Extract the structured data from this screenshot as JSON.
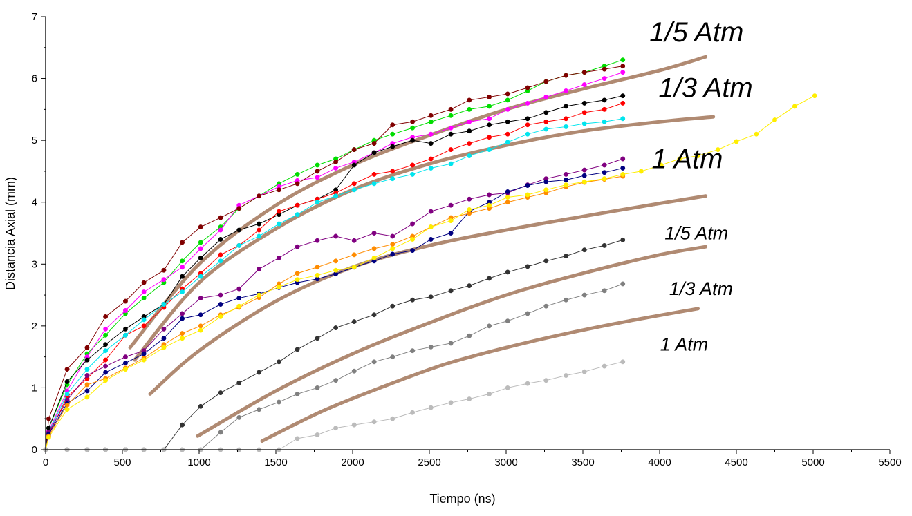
{
  "chart_data": {
    "type": "line",
    "title": "",
    "xlabel": "Tiempo (ns)",
    "ylabel": "Distancia Axial (mm)",
    "xlim": [
      0,
      5500
    ],
    "ylim": [
      0,
      7
    ],
    "x_ticks": [
      "0",
      "500",
      "1000",
      "1500",
      "2000",
      "2500",
      "3000",
      "3500",
      "4000",
      "4500",
      "5000",
      "5500"
    ],
    "y_ticks": [
      "0",
      "1",
      "2",
      "3",
      "4",
      "5",
      "6",
      "7"
    ],
    "grid": false,
    "legend": "none",
    "annotations": [
      {
        "text": "1/5 Atm",
        "x": 4240,
        "y": 6.6,
        "size": "large"
      },
      {
        "text": "1/3 Atm",
        "x": 4300,
        "y": 5.7,
        "size": "large"
      },
      {
        "text": "1 Atm",
        "x": 4180,
        "y": 4.55,
        "size": "large"
      },
      {
        "text": "1/5 Atm",
        "x": 4240,
        "y": 3.4,
        "size": "small"
      },
      {
        "text": "1/3 Atm",
        "x": 4270,
        "y": 2.5,
        "size": "small"
      },
      {
        "text": "1 Atm",
        "x": 4160,
        "y": 1.6,
        "size": "small"
      }
    ],
    "series": [
      {
        "color": "#00dd00",
        "x": [
          0,
          20,
          140,
          270,
          390,
          520,
          640,
          770,
          890,
          1010,
          1140,
          1260,
          1390,
          1520,
          1640,
          1770,
          1890,
          2010,
          2140,
          2260,
          2390,
          2510,
          2640,
          2760,
          2890,
          3010,
          3140,
          3260,
          3390,
          3510,
          3640,
          3760
        ],
        "y": [
          0,
          0.35,
          1.05,
          1.55,
          1.85,
          2.2,
          2.45,
          2.7,
          3.05,
          3.35,
          3.6,
          3.9,
          4.1,
          4.3,
          4.45,
          4.6,
          4.7,
          4.85,
          5.0,
          5.1,
          5.2,
          5.3,
          5.4,
          5.5,
          5.55,
          5.65,
          5.8,
          5.95,
          6.05,
          6.1,
          6.2,
          6.3
        ]
      },
      {
        "color": "#ff00ff",
        "x": [
          0,
          20,
          140,
          270,
          390,
          520,
          640,
          770,
          890,
          1010,
          1140,
          1260,
          1390,
          1520,
          1640,
          1770,
          1890,
          2010,
          2140,
          2260,
          2390,
          2510,
          2640,
          2760,
          2890,
          3010,
          3140,
          3260,
          3390,
          3510,
          3640,
          3760
        ],
        "y": [
          0,
          0.3,
          0.95,
          1.5,
          1.95,
          2.25,
          2.55,
          2.75,
          2.95,
          3.25,
          3.55,
          3.95,
          4.1,
          4.25,
          4.35,
          4.4,
          4.55,
          4.65,
          4.8,
          4.95,
          5.05,
          5.1,
          5.2,
          5.3,
          5.35,
          5.5,
          5.6,
          5.7,
          5.8,
          5.9,
          6.0,
          6.1
        ]
      },
      {
        "color": "#800000",
        "x": [
          0,
          20,
          140,
          270,
          390,
          520,
          640,
          770,
          890,
          1010,
          1140,
          1260,
          1390,
          1520,
          1640,
          1770,
          1890,
          2010,
          2140,
          2260,
          2390,
          2510,
          2640,
          2760,
          2890,
          3010,
          3140,
          3260,
          3390,
          3510,
          3640,
          3760
        ],
        "y": [
          0,
          0.5,
          1.3,
          1.65,
          2.15,
          2.4,
          2.7,
          2.9,
          3.35,
          3.6,
          3.75,
          3.9,
          4.1,
          4.2,
          4.3,
          4.5,
          4.65,
          4.85,
          4.95,
          5.25,
          5.3,
          5.4,
          5.5,
          5.65,
          5.7,
          5.75,
          5.85,
          5.95,
          6.05,
          6.1,
          6.15,
          6.2
        ]
      },
      {
        "color": "#000000",
        "x": [
          0,
          20,
          140,
          270,
          390,
          520,
          640,
          770,
          890,
          1010,
          1140,
          1260,
          1390,
          1520,
          1640,
          1770,
          1890,
          2010,
          2140,
          2260,
          2390,
          2510,
          2640,
          2760,
          2890,
          3010,
          3140,
          3260,
          3390,
          3510,
          3640,
          3760
        ],
        "y": [
          0,
          0.35,
          1.1,
          1.45,
          1.7,
          1.95,
          2.15,
          2.35,
          2.8,
          3.1,
          3.4,
          3.55,
          3.65,
          3.8,
          3.95,
          4.05,
          4.2,
          4.6,
          4.8,
          4.9,
          5.0,
          4.95,
          5.1,
          5.15,
          5.25,
          5.3,
          5.35,
          5.45,
          5.55,
          5.6,
          5.65,
          5.72
        ]
      },
      {
        "color": "#ff0000",
        "x": [
          0,
          20,
          140,
          270,
          390,
          520,
          640,
          770,
          890,
          1010,
          1140,
          1260,
          1390,
          1520,
          1640,
          1770,
          1890,
          2010,
          2140,
          2260,
          2390,
          2510,
          2640,
          2760,
          2890,
          3010,
          3140,
          3260,
          3390,
          3510,
          3640,
          3760
        ],
        "y": [
          0,
          0.25,
          0.85,
          1.15,
          1.45,
          1.85,
          2.0,
          2.3,
          2.6,
          2.85,
          3.15,
          3.3,
          3.55,
          3.85,
          3.95,
          4.05,
          4.15,
          4.3,
          4.45,
          4.5,
          4.6,
          4.7,
          4.85,
          4.95,
          5.05,
          5.1,
          5.25,
          5.3,
          5.35,
          5.45,
          5.5,
          5.6
        ]
      },
      {
        "color": "#00e5ee",
        "x": [
          0,
          20,
          140,
          270,
          390,
          520,
          640,
          770,
          890,
          1010,
          1140,
          1260,
          1390,
          1520,
          1640,
          1770,
          1890,
          2010,
          2140,
          2260,
          2390,
          2510,
          2640,
          2760,
          2890,
          3010,
          3140,
          3260,
          3390,
          3510,
          3640,
          3760
        ],
        "y": [
          0,
          0.28,
          0.9,
          1.3,
          1.6,
          1.85,
          2.1,
          2.35,
          2.55,
          2.8,
          3.05,
          3.3,
          3.45,
          3.65,
          3.8,
          4.0,
          4.1,
          4.2,
          4.3,
          4.38,
          4.45,
          4.55,
          4.62,
          4.75,
          4.85,
          4.97,
          5.1,
          5.18,
          5.22,
          5.27,
          5.3,
          5.35
        ]
      },
      {
        "color": "#800080",
        "x": [
          0,
          20,
          140,
          270,
          390,
          520,
          640,
          770,
          890,
          1010,
          1140,
          1260,
          1390,
          1520,
          1640,
          1770,
          1890,
          2010,
          2140,
          2260,
          2390,
          2510,
          2640,
          2760,
          2890,
          3010,
          3140,
          3260,
          3390,
          3510,
          3640,
          3760
        ],
        "y": [
          0,
          0.28,
          0.8,
          1.2,
          1.35,
          1.5,
          1.6,
          1.95,
          2.2,
          2.45,
          2.5,
          2.6,
          2.92,
          3.1,
          3.28,
          3.38,
          3.45,
          3.38,
          3.5,
          3.45,
          3.65,
          3.85,
          3.95,
          4.05,
          4.12,
          4.15,
          4.28,
          4.38,
          4.45,
          4.52,
          4.6,
          4.7
        ]
      },
      {
        "color": "#000080",
        "x": [
          0,
          20,
          140,
          270,
          390,
          520,
          640,
          770,
          890,
          1010,
          1140,
          1260,
          1390,
          1520,
          1640,
          1770,
          1890,
          2010,
          2140,
          2260,
          2390,
          2510,
          2640,
          2760,
          2890,
          3010,
          3140,
          3260,
          3390,
          3510,
          3640,
          3760
        ],
        "y": [
          0,
          0.25,
          0.75,
          0.95,
          1.25,
          1.4,
          1.55,
          1.8,
          2.12,
          2.18,
          2.35,
          2.45,
          2.52,
          2.62,
          2.7,
          2.76,
          2.84,
          2.95,
          3.05,
          3.16,
          3.22,
          3.4,
          3.5,
          3.85,
          4.0,
          4.17,
          4.27,
          4.33,
          4.36,
          4.43,
          4.48,
          4.55
        ]
      },
      {
        "color": "#ff8c00",
        "x": [
          0,
          20,
          140,
          270,
          390,
          520,
          640,
          770,
          890,
          1010,
          1140,
          1260,
          1390,
          1520,
          1640,
          1770,
          1890,
          2010,
          2140,
          2260,
          2390,
          2510,
          2640,
          2760,
          2890,
          3010,
          3140,
          3260,
          3390,
          3510,
          3640,
          3760
        ],
        "y": [
          0,
          0.22,
          0.72,
          1.05,
          1.15,
          1.32,
          1.48,
          1.7,
          1.88,
          2.0,
          2.18,
          2.3,
          2.46,
          2.68,
          2.85,
          2.95,
          3.05,
          3.15,
          3.25,
          3.32,
          3.45,
          3.6,
          3.75,
          3.82,
          3.9,
          4.0,
          4.08,
          4.15,
          4.25,
          4.32,
          4.37,
          4.42
        ]
      },
      {
        "color": "#ffee00",
        "x": [
          0,
          20,
          140,
          270,
          390,
          520,
          640,
          770,
          890,
          1010,
          1140,
          1260,
          1390,
          1520,
          1640,
          1770,
          1890,
          2010,
          2140,
          2260,
          2390,
          2510,
          2640,
          2760,
          2890,
          3010,
          3140,
          3260,
          3390,
          3510,
          3640,
          3760,
          3880,
          4010,
          4130,
          4250,
          4380,
          4500,
          4630,
          4750,
          4880,
          5010
        ],
        "y": [
          0,
          0.2,
          0.65,
          0.85,
          1.12,
          1.3,
          1.45,
          1.65,
          1.8,
          1.93,
          2.15,
          2.32,
          2.5,
          2.63,
          2.75,
          2.82,
          2.9,
          2.95,
          3.1,
          3.25,
          3.4,
          3.6,
          3.7,
          3.88,
          3.95,
          4.08,
          4.12,
          4.2,
          4.28,
          4.33,
          4.38,
          4.45,
          4.5,
          4.6,
          4.7,
          4.75,
          4.85,
          4.98,
          5.1,
          5.33,
          5.55,
          5.72
        ]
      },
      {
        "color": "#333333",
        "x": [
          0,
          140,
          270,
          390,
          520,
          640,
          770,
          890,
          1010,
          1140,
          1260,
          1390,
          1520,
          1640,
          1770,
          1890,
          2010,
          2140,
          2260,
          2390,
          2510,
          2640,
          2760,
          2890,
          3010,
          3140,
          3260,
          3390,
          3510,
          3640,
          3760
        ],
        "y": [
          0,
          0,
          0,
          0,
          0,
          0,
          0,
          0.4,
          0.7,
          0.92,
          1.08,
          1.25,
          1.42,
          1.62,
          1.8,
          1.97,
          2.07,
          2.18,
          2.32,
          2.42,
          2.47,
          2.57,
          2.65,
          2.77,
          2.87,
          2.96,
          3.05,
          3.13,
          3.23,
          3.3,
          3.39
        ]
      },
      {
        "color": "#808080",
        "x": [
          0,
          140,
          270,
          390,
          520,
          640,
          770,
          890,
          1010,
          1140,
          1260,
          1390,
          1520,
          1640,
          1770,
          1890,
          2010,
          2140,
          2260,
          2390,
          2510,
          2640,
          2760,
          2890,
          3010,
          3140,
          3260,
          3390,
          3510,
          3640,
          3760
        ],
        "y": [
          0,
          0,
          0,
          0,
          0,
          0,
          0,
          0,
          0,
          0.28,
          0.52,
          0.65,
          0.77,
          0.9,
          1.0,
          1.12,
          1.27,
          1.42,
          1.5,
          1.6,
          1.66,
          1.72,
          1.84,
          2.0,
          2.08,
          2.2,
          2.32,
          2.42,
          2.5,
          2.57,
          2.68
        ]
      },
      {
        "color": "#bbbbbb",
        "x": [
          0,
          140,
          270,
          390,
          520,
          640,
          770,
          890,
          1010,
          1140,
          1260,
          1390,
          1520,
          1640,
          1770,
          1890,
          2010,
          2140,
          2260,
          2390,
          2510,
          2640,
          2760,
          2890,
          3010,
          3140,
          3260,
          3390,
          3510,
          3640,
          3760
        ],
        "y": [
          0,
          0,
          0,
          0,
          0,
          0,
          0,
          0,
          0,
          0,
          0,
          0,
          0,
          0.18,
          0.24,
          0.35,
          0.4,
          0.45,
          0.5,
          0.6,
          0.68,
          0.76,
          0.82,
          0.9,
          1.0,
          1.07,
          1.12,
          1.2,
          1.26,
          1.35,
          1.42
        ]
      }
    ],
    "fits": [
      {
        "color": "#b08a72",
        "x": [
          550,
          1000,
          1500,
          2000,
          2500,
          3000,
          3500,
          4000,
          4300
        ],
        "y": [
          1.65,
          3.0,
          3.95,
          4.6,
          5.08,
          5.5,
          5.83,
          6.13,
          6.35
        ]
      },
      {
        "color": "#b08a72",
        "x": [
          580,
          1000,
          1500,
          2000,
          2500,
          3000,
          3500,
          4000,
          4350
        ],
        "y": [
          1.45,
          2.7,
          3.57,
          4.2,
          4.62,
          4.92,
          5.15,
          5.3,
          5.38
        ]
      },
      {
        "color": "#b08a72",
        "x": [
          680,
          1000,
          1500,
          2000,
          2500,
          3000,
          3500,
          4000,
          4300
        ],
        "y": [
          0.9,
          1.6,
          2.4,
          2.95,
          3.3,
          3.55,
          3.77,
          3.98,
          4.1
        ]
      },
      {
        "color": "#b08a72",
        "x": [
          990,
          1500,
          2000,
          2500,
          3000,
          3500,
          4000,
          4300
        ],
        "y": [
          0.22,
          0.95,
          1.55,
          2.05,
          2.5,
          2.85,
          3.15,
          3.28
        ]
      },
      {
        "color": "#b08a72",
        "x": [
          1410,
          1800,
          2200,
          2600,
          3000,
          3400,
          3800,
          4250
        ],
        "y": [
          0.14,
          0.62,
          1.02,
          1.38,
          1.65,
          1.88,
          2.08,
          2.28
        ]
      }
    ]
  }
}
